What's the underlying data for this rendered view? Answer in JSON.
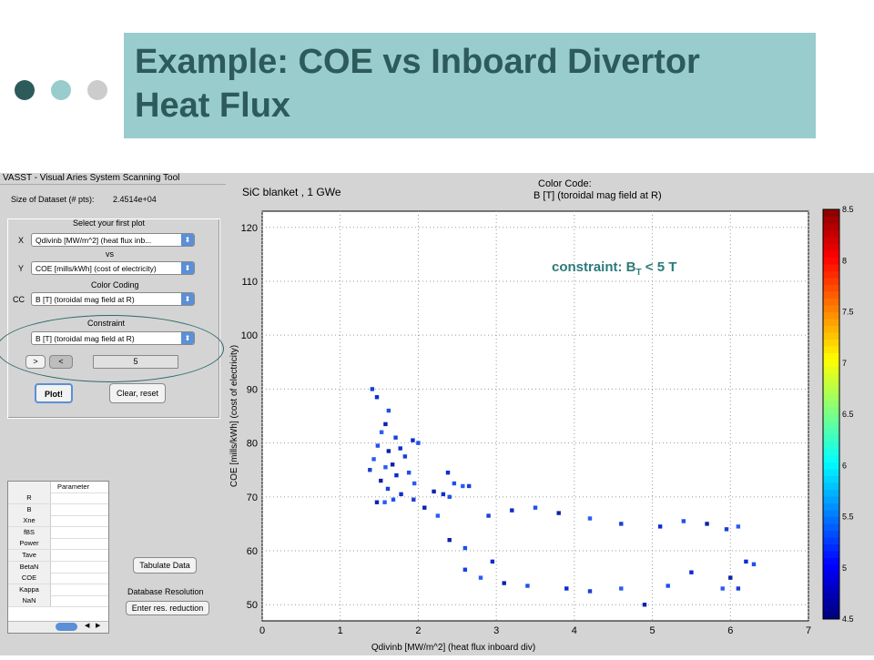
{
  "slide": {
    "title": "Example: COE vs Inboard Divertor\nHeat Flux",
    "dot_colors": [
      "#2d5a5a",
      "#99cccc",
      "#cccccc"
    ]
  },
  "gui": {
    "window_title": "VASST - Visual Aries System Scanning Tool",
    "dataset_label": "Size of Dataset (# pts):",
    "dataset_value": "2.4514e+04",
    "select_label": "Select your first plot",
    "x_label": "X",
    "x_value": "Qdivinb [MW/m^2] (heat flux inb...",
    "vs_label": "vs",
    "y_label": "Y",
    "y_value": "COE [mills/kWh] (cost of electricity)",
    "color_coding_label": "Color Coding",
    "cc_label": "CC",
    "cc_value": "B [T] (toroidal mag field at R)",
    "constraint_label": "Constraint",
    "constraint_value": "B [T] (toroidal mag field at R)",
    "gt_label": ">",
    "lt_label": "<",
    "constraint_input": "5",
    "plot_button": "Plot!",
    "clear_button": "Clear, reset",
    "table_header": "Parameter",
    "table_rows": [
      "R",
      "B",
      "Xne",
      "fBS",
      "Power",
      "Tave",
      "BetaN",
      "COE",
      "Kappa",
      "NaN"
    ],
    "tabulate_button": "Tabulate Data",
    "db_resolution_label": "Database Resolution",
    "res_button": "Enter res. reduction"
  },
  "plot": {
    "top_left_label": "SiC blanket , 1 GWe",
    "color_code_title": "Color Code:",
    "color_code_sub": "B [T] (toroidal mag field at R)",
    "constraint_prefix": "constraint: B",
    "constraint_sub": "T",
    "constraint_suffix": " < 5 T",
    "accent_color": "#2d7a7a"
  },
  "chart_data": {
    "type": "scatter",
    "xlabel": "Qdivinb [MW/m^2] (heat flux inboard div)",
    "ylabel": "COE [mills/kWh] (cost of electricity)",
    "xlim": [
      0,
      7
    ],
    "ylim": [
      47,
      123
    ],
    "xticks": [
      0,
      1,
      2,
      3,
      4,
      5,
      6,
      7
    ],
    "yticks": [
      50,
      60,
      70,
      80,
      90,
      100,
      110,
      120
    ],
    "grid": true,
    "colorbar": {
      "label": "B [T] (toroidal mag field at R)",
      "range": [
        4.5,
        8.5
      ],
      "ticks": [
        4.5,
        5,
        5.5,
        6,
        6.5,
        7,
        7.5,
        8,
        8.5
      ]
    },
    "series": [
      {
        "points": [
          [
            1.41,
            90
          ],
          [
            1.47,
            88.5
          ],
          [
            1.62,
            86
          ],
          [
            1.58,
            83.5
          ],
          [
            1.53,
            82
          ],
          [
            1.71,
            81
          ],
          [
            1.77,
            79
          ],
          [
            1.48,
            79.5
          ],
          [
            1.62,
            78.5
          ],
          [
            1.43,
            77
          ],
          [
            1.83,
            77.5
          ],
          [
            1.93,
            80.5
          ],
          [
            2.0,
            80
          ],
          [
            1.67,
            76
          ],
          [
            1.58,
            75.5
          ],
          [
            1.38,
            75
          ],
          [
            1.72,
            74
          ],
          [
            1.88,
            74.5
          ],
          [
            1.52,
            73
          ],
          [
            1.95,
            72.5
          ],
          [
            1.61,
            71.5
          ],
          [
            1.78,
            70.5
          ],
          [
            1.68,
            69.5
          ],
          [
            1.47,
            69
          ],
          [
            1.57,
            69
          ],
          [
            1.94,
            69.5
          ],
          [
            2.38,
            74.5
          ],
          [
            2.46,
            72.5
          ],
          [
            2.2,
            71
          ],
          [
            2.57,
            72
          ],
          [
            2.65,
            72
          ],
          [
            2.32,
            70.5
          ],
          [
            2.4,
            70
          ],
          [
            2.08,
            68
          ],
          [
            2.25,
            66.5
          ],
          [
            2.9,
            66.5
          ],
          [
            3.2,
            67.5
          ],
          [
            3.5,
            68
          ],
          [
            3.8,
            67
          ],
          [
            4.2,
            66
          ],
          [
            4.6,
            65
          ],
          [
            5.1,
            64.5
          ],
          [
            5.4,
            65.5
          ],
          [
            5.7,
            65
          ],
          [
            6.1,
            64.5
          ],
          [
            5.95,
            64
          ],
          [
            6.2,
            58
          ],
          [
            6.3,
            57.5
          ],
          [
            6.0,
            55
          ],
          [
            5.9,
            53
          ],
          [
            6.1,
            53
          ],
          [
            5.5,
            56
          ],
          [
            5.2,
            53.5
          ],
          [
            4.9,
            50
          ],
          [
            4.6,
            53
          ],
          [
            4.2,
            52.5
          ],
          [
            3.9,
            53
          ],
          [
            3.4,
            53.5
          ],
          [
            3.1,
            54
          ],
          [
            2.8,
            55
          ],
          [
            2.6,
            56.5
          ],
          [
            2.95,
            58
          ],
          [
            2.6,
            60.5
          ],
          [
            2.4,
            62
          ]
        ]
      }
    ]
  }
}
